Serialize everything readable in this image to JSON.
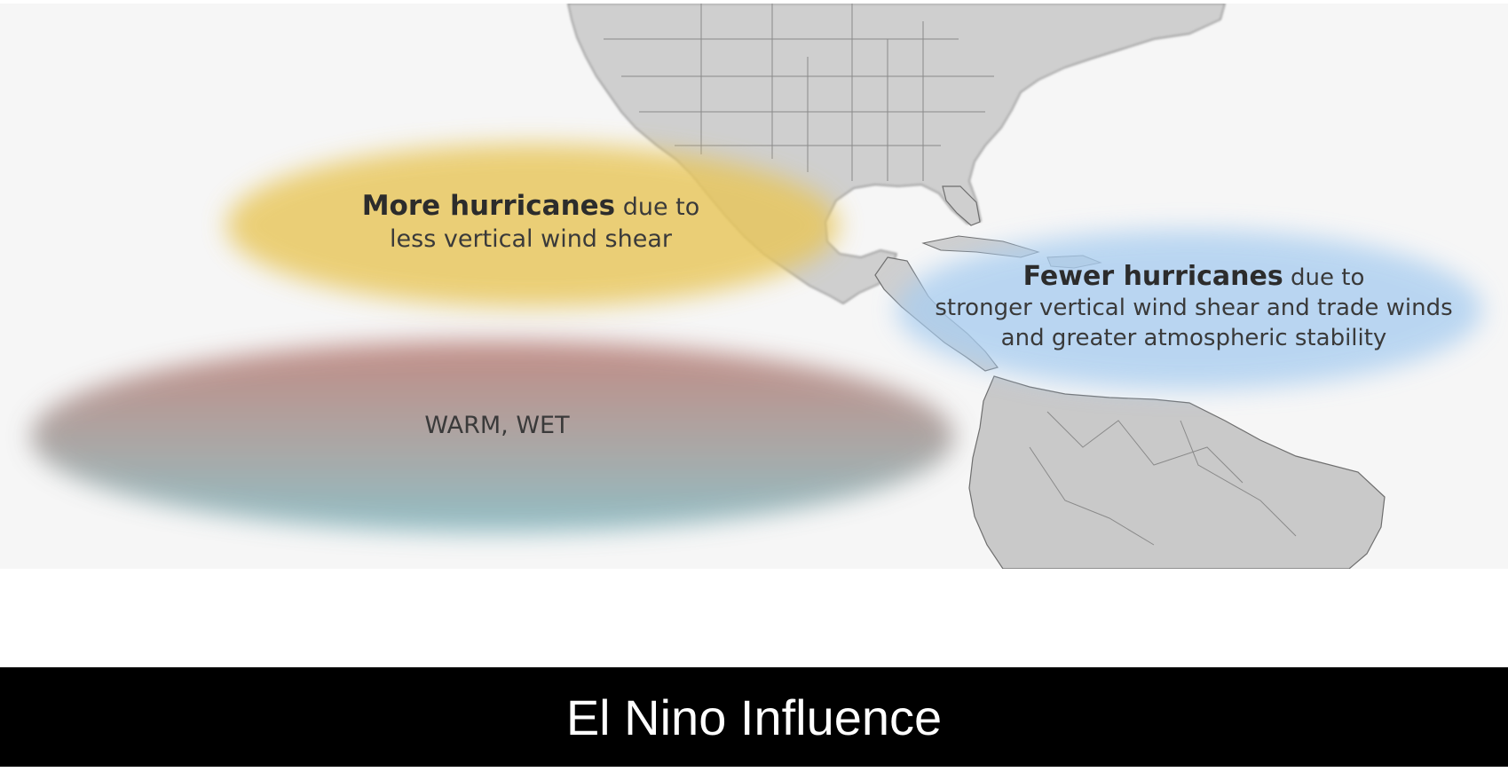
{
  "map": {
    "colors": {
      "ocean": "#f6f6f6",
      "land": "#cfcfcf",
      "land_border": "#6e6e6e",
      "yellow_zone": "#e8c65a",
      "blue_zone": "#a9cdf0",
      "warm_top": "#b97a72",
      "warm_bottom": "#7fb4bd"
    },
    "labels": {
      "more_bold": "More hurricanes",
      "more_rest": " due to",
      "more_line2": "less vertical wind shear",
      "fewer_bold": "Fewer hurricanes",
      "fewer_rest": " due to",
      "fewer_line2": "stronger vertical wind shear and trade winds",
      "fewer_line3": "and greater atmospheric stability",
      "warm": "WARM, WET"
    }
  },
  "caption": {
    "title": "El Nino Influence",
    "background": "#000000",
    "text_color": "#ffffff"
  }
}
